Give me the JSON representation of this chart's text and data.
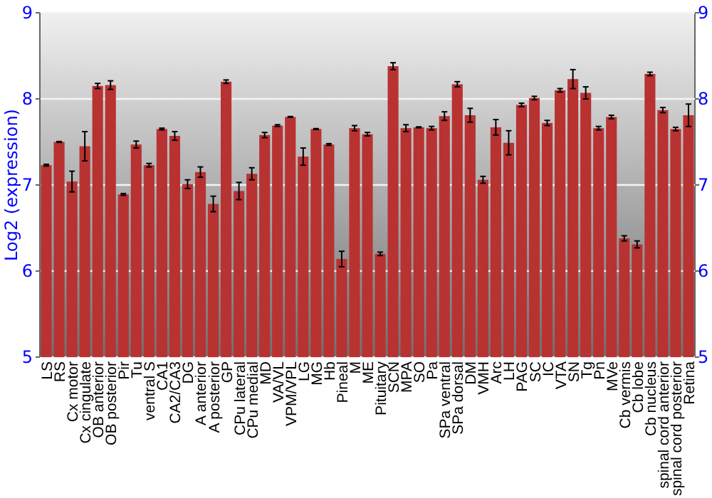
{
  "chart_data": {
    "type": "bar",
    "ylabel": "Log2 (expression)",
    "categories": [
      "LS",
      "RS",
      "Cx motor",
      "Cx cingulate",
      "OB anterior",
      "OB posterior",
      "Pir",
      "Tu",
      "ventral S",
      "CA1",
      "CA2/CA3",
      "DG",
      "A anterior",
      "A posterior",
      "GP",
      "CPu lateral",
      "CPu medial",
      "MD",
      "VA/VL",
      "VPM/VPL",
      "LG",
      "MG",
      "Hb",
      "Pineal",
      "M",
      "ME",
      "Pituitary",
      "SCN",
      "MPA",
      "SO",
      "Pa",
      "SPa ventral",
      "SPa dorsal",
      "DM",
      "VMH",
      "Arc",
      "LH",
      "PAG",
      "SC",
      "IC",
      "VTA",
      "SN",
      "Tg",
      "Pn",
      "MVe",
      "Cb vermis",
      "Cb lobe",
      "Cb nucleus",
      "spinal cord anterior",
      "spinal cord posterior",
      "Retina"
    ],
    "values": [
      7.23,
      7.5,
      7.04,
      7.45,
      8.15,
      8.16,
      6.89,
      7.47,
      7.23,
      7.65,
      7.57,
      7.01,
      7.15,
      6.78,
      8.2,
      6.93,
      7.13,
      7.58,
      7.69,
      7.79,
      7.33,
      7.65,
      7.47,
      6.14,
      7.66,
      7.59,
      6.2,
      8.38,
      7.66,
      7.67,
      7.66,
      7.8,
      8.17,
      7.81,
      7.06,
      7.67,
      7.49,
      7.93,
      8.01,
      7.72,
      8.1,
      8.23,
      8.07,
      7.66,
      7.79,
      6.38,
      6.31,
      8.29,
      7.87,
      7.65,
      7.81
    ],
    "errors": [
      0.01,
      0.005,
      0.12,
      0.17,
      0.03,
      0.05,
      0.01,
      0.04,
      0.02,
      0.01,
      0.05,
      0.05,
      0.06,
      0.09,
      0.02,
      0.1,
      0.07,
      0.03,
      0.01,
      0.005,
      0.1,
      0.005,
      0.01,
      0.09,
      0.03,
      0.02,
      0.02,
      0.04,
      0.04,
      0.005,
      0.02,
      0.05,
      0.03,
      0.08,
      0.04,
      0.09,
      0.14,
      0.02,
      0.02,
      0.03,
      0.02,
      0.11,
      0.07,
      0.02,
      0.02,
      0.03,
      0.04,
      0.02,
      0.03,
      0.02,
      0.13
    ],
    "color": "#b83232",
    "ylim": [
      5,
      9
    ],
    "yticks": [
      5,
      6,
      7,
      8,
      9
    ],
    "y2lim": [
      5,
      9
    ],
    "y2ticks": [
      5,
      6,
      7,
      8,
      9
    ],
    "grid": "y"
  }
}
